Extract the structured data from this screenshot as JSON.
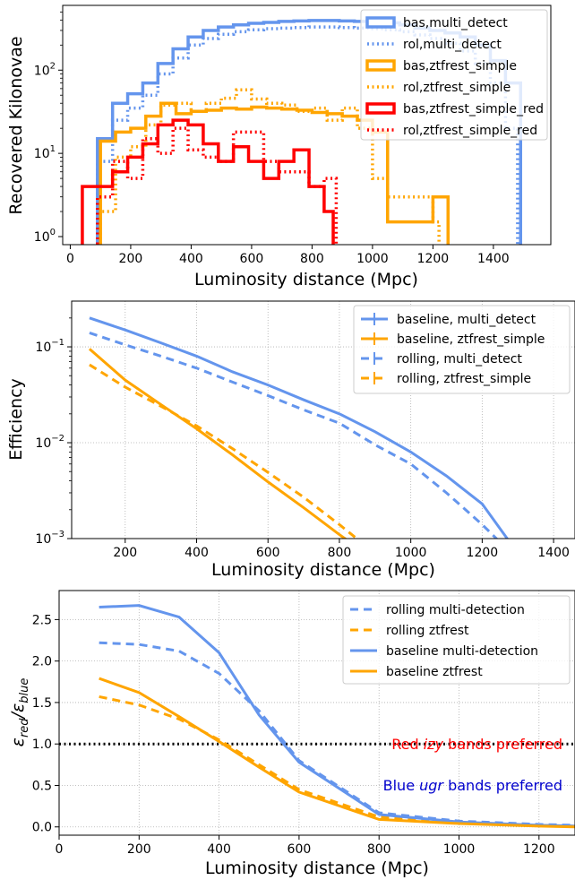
{
  "colors": {
    "blue": "#6495ed",
    "orange": "#ffa500",
    "red": "#ff0000",
    "black": "#000000",
    "note_red": "#ff0000",
    "note_blue": "#0000cd"
  },
  "chart_data": [
    {
      "type": "histogram",
      "xlabel": "Luminosity distance (Mpc)",
      "ylabel": "Recovered Kilonovae",
      "xlim": [
        -25,
        1590
      ],
      "ylim": [
        0.8,
        600
      ],
      "y_scale": "log",
      "grid": false,
      "legend_position": "top-right",
      "x_ticks": [
        0,
        200,
        400,
        600,
        800,
        1000,
        1200,
        1400
      ],
      "y_ticks": [
        1,
        10,
        100
      ],
      "y_tick_labels": [
        "10",
        "10",
        "10"
      ],
      "y_tick_exponents": [
        "0",
        "1",
        "2"
      ],
      "series": [
        {
          "name": "bas,multi_detect",
          "color": "#6495ed",
          "style": "solid",
          "edges": [
            90,
            140,
            190,
            240,
            290,
            340,
            390,
            440,
            490,
            540,
            590,
            640,
            690,
            740,
            790,
            840,
            890,
            940,
            990,
            1040,
            1090,
            1140,
            1190,
            1240,
            1290,
            1340,
            1390,
            1440,
            1490
          ],
          "values": [
            15,
            40,
            52,
            70,
            120,
            180,
            250,
            300,
            330,
            350,
            365,
            375,
            385,
            390,
            395,
            395,
            390,
            385,
            380,
            370,
            350,
            320,
            300,
            280,
            250,
            200,
            130,
            70
          ]
        },
        {
          "name": "rol,multi_detect",
          "color": "#6495ed",
          "style": "dotted",
          "edges": [
            90,
            140,
            190,
            240,
            290,
            340,
            390,
            440,
            490,
            540,
            590,
            640,
            690,
            740,
            790,
            840,
            890,
            940,
            990,
            1040,
            1090,
            1140,
            1190,
            1240,
            1290,
            1340,
            1390,
            1440,
            1480
          ],
          "values": [
            8,
            25,
            35,
            50,
            90,
            140,
            200,
            240,
            270,
            290,
            305,
            315,
            320,
            325,
            330,
            330,
            325,
            320,
            315,
            305,
            290,
            265,
            240,
            210,
            170,
            120,
            70,
            20
          ]
        },
        {
          "name": "bas,ztfrest_simple",
          "color": "#ffa500",
          "style": "solid",
          "edges": [
            100,
            150,
            200,
            250,
            300,
            350,
            400,
            450,
            500,
            550,
            600,
            650,
            700,
            750,
            800,
            850,
            900,
            950,
            1000,
            1050,
            1100,
            1150,
            1200,
            1250
          ],
          "values": [
            14,
            18,
            20,
            28,
            40,
            30,
            32,
            33,
            35,
            34,
            36,
            35,
            34,
            33,
            31,
            30,
            28,
            25,
            18,
            1.5,
            1.5,
            1.5,
            3
          ]
        },
        {
          "name": "rol,ztfrest_simple",
          "color": "#ffa500",
          "style": "dotted",
          "edges": [
            100,
            150,
            200,
            250,
            300,
            350,
            400,
            450,
            500,
            550,
            600,
            650,
            700,
            750,
            800,
            850,
            900,
            950,
            1000,
            1050,
            1100,
            1150,
            1200,
            1220
          ],
          "values": [
            2,
            9,
            12,
            22,
            38,
            40,
            32,
            40,
            46,
            58,
            45,
            40,
            38,
            32,
            35,
            25,
            35,
            20,
            5,
            3,
            3,
            3,
            1.5
          ]
        },
        {
          "name": "bas,ztfrest_simple_red",
          "color": "#ff0000",
          "style": "solid",
          "edges": [
            40,
            90,
            140,
            190,
            240,
            290,
            340,
            390,
            440,
            490,
            540,
            590,
            640,
            690,
            740,
            790,
            840,
            870
          ],
          "values": [
            4,
            4,
            6,
            9,
            13,
            22,
            25,
            22,
            13,
            8,
            12,
            8,
            5,
            8,
            11,
            4,
            2
          ]
        },
        {
          "name": "rol,ztfrest_simple_red",
          "color": "#ff0000",
          "style": "dotted",
          "edges": [
            90,
            140,
            190,
            240,
            290,
            340,
            390,
            440,
            490,
            540,
            590,
            640,
            690,
            740,
            790,
            840,
            880
          ],
          "values": [
            3,
            8,
            5,
            15,
            10,
            20,
            11,
            9,
            8,
            18,
            18,
            8,
            6,
            6,
            4,
            5
          ]
        }
      ]
    },
    {
      "type": "line",
      "xlabel": "Luminosity distance (Mpc)",
      "ylabel": "Efficiency",
      "xlim": [
        50,
        1460
      ],
      "ylim": [
        0.001,
        0.3
      ],
      "y_scale": "log",
      "grid": true,
      "legend_position": "top-right",
      "x_ticks": [
        200,
        400,
        600,
        800,
        1000,
        1200,
        1400
      ],
      "y_ticks": [
        0.001,
        0.01,
        0.1
      ],
      "y_tick_labels": [
        "10",
        "10",
        "10"
      ],
      "y_tick_exponents": [
        "−3",
        "−2",
        "−1"
      ],
      "series": [
        {
          "name": "baseline, multi_detect",
          "color": "#6495ed",
          "style": "solid",
          "x": [
            100,
            200,
            300,
            400,
            500,
            600,
            700,
            800,
            900,
            1000,
            1100,
            1200,
            1300
          ],
          "y": [
            0.2,
            0.15,
            0.11,
            0.08,
            0.055,
            0.04,
            0.028,
            0.02,
            0.013,
            0.008,
            0.0045,
            0.0023,
            0.0007
          ]
        },
        {
          "name": "baseline, ztfrest_simple",
          "color": "#ffa500",
          "style": "solid",
          "x": [
            100,
            200,
            300,
            400,
            500,
            600,
            700,
            800,
            900
          ],
          "y": [
            0.095,
            0.045,
            0.025,
            0.014,
            0.0075,
            0.0039,
            0.0021,
            0.0011,
            0.0006
          ]
        },
        {
          "name": "rolling, multi_detect",
          "color": "#6495ed",
          "style": "dashed",
          "x": [
            100,
            200,
            300,
            400,
            500,
            600,
            700,
            800,
            900,
            1000,
            1100,
            1200,
            1300
          ],
          "y": [
            0.14,
            0.105,
            0.08,
            0.06,
            0.043,
            0.031,
            0.022,
            0.016,
            0.0095,
            0.006,
            0.003,
            0.0014,
            0.0006
          ]
        },
        {
          "name": "rolling, ztfrest_simple",
          "color": "#ffa500",
          "style": "dashed",
          "x": [
            100,
            200,
            300,
            400,
            500,
            600,
            700,
            800,
            900
          ],
          "y": [
            0.065,
            0.038,
            0.024,
            0.015,
            0.0087,
            0.0049,
            0.0027,
            0.0014,
            0.0007
          ]
        }
      ]
    },
    {
      "type": "line",
      "xlabel": "Luminosity distance (Mpc)",
      "ylabel_main": "ε",
      "ylabel_sub1": "red",
      "ylabel_mid": "/ε",
      "ylabel_sub2": "blue",
      "xlim": [
        0,
        1290
      ],
      "ylim": [
        -0.1,
        2.85
      ],
      "grid": true,
      "legend_position": "top-right",
      "x_ticks": [
        0,
        200,
        400,
        600,
        800,
        1000,
        1200
      ],
      "y_ticks": [
        0.0,
        0.5,
        1.0,
        1.5,
        2.0,
        2.5
      ],
      "y_tick_labels": [
        "0.0",
        "0.5",
        "1.0",
        "1.5",
        "2.0",
        "2.5"
      ],
      "reference_line": {
        "y": 1.0,
        "color": "#000000",
        "style": "dotted"
      },
      "series": [
        {
          "name": "rolling multi-detection",
          "color": "#6495ed",
          "style": "dashed",
          "x": [
            100,
            200,
            300,
            400,
            500,
            600,
            800,
            1000,
            1200,
            1290
          ],
          "y": [
            2.22,
            2.2,
            2.12,
            1.85,
            1.4,
            0.8,
            0.17,
            0.07,
            0.03,
            0.02
          ]
        },
        {
          "name": "rolling ztfrest",
          "color": "#ffa500",
          "style": "dashed",
          "x": [
            100,
            200,
            300,
            400,
            500,
            600,
            800,
            1000,
            1200,
            1290
          ],
          "y": [
            1.57,
            1.47,
            1.3,
            1.05,
            0.75,
            0.45,
            0.12,
            0.05,
            0.02,
            0.01
          ]
        },
        {
          "name": "baseline multi-detection",
          "color": "#6495ed",
          "style": "solid",
          "x": [
            100,
            200,
            300,
            400,
            500,
            600,
            800,
            1000,
            1200,
            1290
          ],
          "y": [
            2.65,
            2.67,
            2.53,
            2.1,
            1.35,
            0.78,
            0.15,
            0.06,
            0.02,
            0.01
          ]
        },
        {
          "name": "baseline ztfrest",
          "color": "#ffa500",
          "style": "solid",
          "x": [
            100,
            200,
            300,
            400,
            500,
            600,
            800,
            1000,
            1200,
            1290
          ],
          "y": [
            1.79,
            1.62,
            1.33,
            1.03,
            0.72,
            0.42,
            0.09,
            0.04,
            0.01,
            0.0
          ]
        }
      ],
      "annotations": [
        {
          "text_prefix": "Red ",
          "text_em": "izy",
          "text_suffix": " bands preferred",
          "color": "#ff0000"
        },
        {
          "text_prefix": "Blue ",
          "text_em": "ugr",
          "text_suffix": " bands preferred",
          "color": "#0000cd"
        }
      ]
    }
  ]
}
